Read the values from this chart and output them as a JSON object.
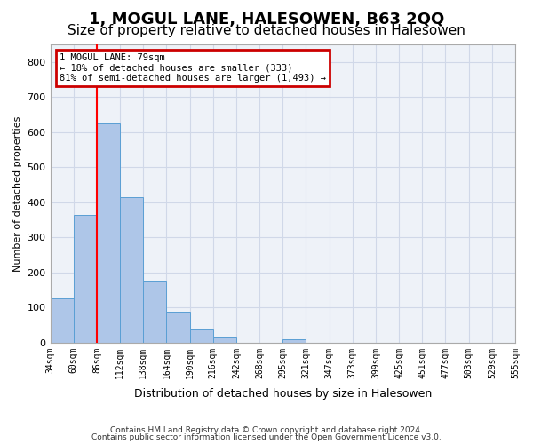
{
  "title": "1, MOGUL LANE, HALESOWEN, B63 2QQ",
  "subtitle": "Size of property relative to detached houses in Halesowen",
  "xlabel": "Distribution of detached houses by size in Halesowen",
  "ylabel": "Number of detached properties",
  "footer_line1": "Contains HM Land Registry data © Crown copyright and database right 2024.",
  "footer_line2": "Contains public sector information licensed under the Open Government Licence v3.0.",
  "bin_labels": [
    "34sqm",
    "60sqm",
    "86sqm",
    "112sqm",
    "138sqm",
    "164sqm",
    "190sqm",
    "216sqm",
    "242sqm",
    "268sqm",
    "295sqm",
    "321sqm",
    "347sqm",
    "373sqm",
    "399sqm",
    "425sqm",
    "451sqm",
    "477sqm",
    "503sqm",
    "529sqm",
    "555sqm"
  ],
  "bar_values": [
    127,
    365,
    625,
    415,
    175,
    88,
    38,
    15,
    0,
    0,
    10,
    0,
    0,
    0,
    0,
    0,
    0,
    0,
    0,
    0
  ],
  "bar_color": "#aec6e8",
  "bar_edge_color": "#5a9fd4",
  "grid_color": "#d0d8e8",
  "bg_color": "#eef2f8",
  "red_line_x": 2.0,
  "annotation_text": "1 MOGUL LANE: 79sqm\n← 18% of detached houses are smaller (333)\n81% of semi-detached houses are larger (1,493) →",
  "annotation_box_color": "#cc0000",
  "ylim": [
    0,
    850
  ],
  "yticks": [
    0,
    100,
    200,
    300,
    400,
    500,
    600,
    700,
    800
  ],
  "title_fontsize": 13,
  "subtitle_fontsize": 11
}
